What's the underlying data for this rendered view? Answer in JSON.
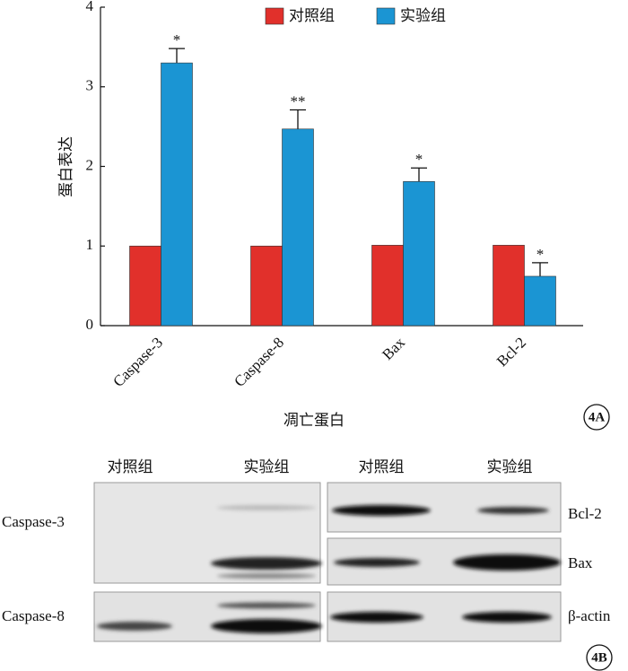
{
  "chart_data": {
    "type": "bar",
    "y_label": "蛋白表达",
    "x_label": "凋亡蛋白",
    "categories": [
      "Caspase-3",
      "Caspase-8",
      "Bax",
      "Bcl-2"
    ],
    "series": [
      {
        "name": "对照组",
        "color": "#e1302b",
        "values": [
          1,
          1,
          1.01,
          1.01
        ]
      },
      {
        "name": "实验组",
        "color": "#1b95d3",
        "values": [
          3.3,
          2.47,
          1.81,
          0.62
        ],
        "errors": [
          0.18,
          0.24,
          0.17,
          0.17
        ],
        "annotations": [
          "*",
          "**",
          "*",
          "*"
        ]
      }
    ],
    "ylim": [
      0,
      4
    ],
    "yticks": [
      0,
      1,
      2,
      3,
      4
    ],
    "legend": "top"
  },
  "panel_label_a": "4A",
  "blot": {
    "headers": [
      "对照组",
      "实验组",
      "对照组",
      "实验组"
    ],
    "left_labels": [
      "Caspase-3",
      "Caspase-8"
    ],
    "right_labels": [
      "Bcl-2",
      "Bax",
      "β-actin"
    ]
  },
  "panel_label_b": "4B"
}
